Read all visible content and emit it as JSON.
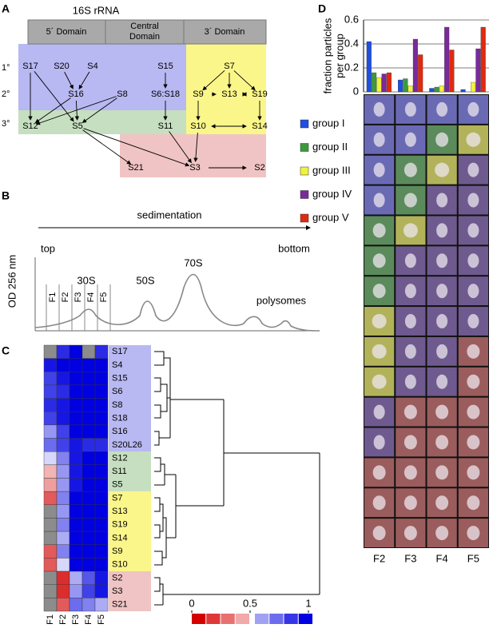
{
  "panel_labels": [
    "A",
    "B",
    "C",
    "D"
  ],
  "panel_a": {
    "title": "16S rRNA",
    "domains": [
      [
        "5´ Domain"
      ],
      [
        "Central",
        "Domain"
      ],
      [
        "3´ Domain"
      ]
    ],
    "levels": [
      "1°",
      "2°",
      "3°"
    ],
    "nodes": [
      "S17",
      "S20",
      "S4",
      "S15",
      "S7",
      "S16",
      "S8",
      "S6:S18",
      "S9",
      "S13",
      "S19",
      "S12",
      "S5",
      "S11",
      "S10",
      "S14",
      "S21",
      "S3",
      "S2"
    ]
  },
  "panel_b": {
    "direction_label": "sedimentation",
    "start": "top",
    "end": "bottom",
    "y_label": "OD 256 nm",
    "peaks": [
      "30S",
      "50S",
      "70S",
      "polysomes"
    ],
    "fractions": [
      "F1",
      "F2",
      "F3",
      "F4",
      "F5"
    ]
  },
  "panel_c": {
    "columns": [
      "F1",
      "F2",
      "F3",
      "F4",
      "F5"
    ],
    "rows": [
      "S17",
      "S4",
      "S15",
      "S6",
      "S8",
      "S18",
      "S16",
      "S20L26",
      "S12",
      "S11",
      "S5",
      "S7",
      "S13",
      "S19",
      "S14",
      "S9",
      "S10",
      "S2",
      "S3",
      "S21"
    ],
    "values": [
      [
        null,
        0.9,
        1,
        null,
        0.9
      ],
      [
        0.95,
        1,
        1,
        1,
        1
      ],
      [
        0.85,
        0.95,
        1,
        1,
        1
      ],
      [
        0.85,
        0.9,
        1,
        1,
        1
      ],
      [
        0.9,
        0.95,
        1,
        1,
        1
      ],
      [
        0.85,
        0.95,
        1,
        1,
        1
      ],
      [
        0.65,
        0.85,
        1,
        1,
        1
      ],
      [
        0.75,
        0.85,
        0.95,
        0.9,
        0.9
      ],
      [
        0.5,
        0.7,
        0.95,
        1,
        1
      ],
      [
        0.4,
        0.65,
        0.95,
        1,
        1
      ],
      [
        0.35,
        0.65,
        0.95,
        1,
        1
      ],
      [
        0.2,
        0.7,
        1,
        1,
        1
      ],
      [
        null,
        0.65,
        1,
        1,
        1
      ],
      [
        null,
        0.7,
        1,
        1,
        1
      ],
      [
        null,
        0.6,
        1,
        1,
        1
      ],
      [
        0.2,
        0.7,
        1,
        1,
        1
      ],
      [
        0.2,
        0.5,
        1,
        1,
        1
      ],
      [
        null,
        0.1,
        0.6,
        0.8,
        0.95
      ],
      [
        null,
        0.1,
        0.65,
        0.85,
        0.95
      ],
      [
        null,
        0.2,
        0.75,
        0.7,
        0.6
      ]
    ],
    "colorbar_ticks": [
      0,
      0.5,
      1
    ]
  },
  "chart_data": {
    "type": "bar",
    "y_label": [
      "fraction particles",
      "per group"
    ],
    "categories": [
      "F2",
      "F3",
      "F4",
      "F5"
    ],
    "series": [
      {
        "name": "group I",
        "color": "#1f4fe0",
        "values": [
          0.42,
          0.1,
          0.03,
          0.02
        ]
      },
      {
        "name": "group II",
        "color": "#3c9a3c",
        "values": [
          0.16,
          0.11,
          0.04,
          0
        ]
      },
      {
        "name": "group III",
        "color": "#f2f23c",
        "values": [
          0.12,
          0.05,
          0.05,
          0.08
        ]
      },
      {
        "name": "group IV",
        "color": "#7a2a9a",
        "values": [
          0.15,
          0.44,
          0.54,
          0.36
        ]
      },
      {
        "name": "group V",
        "color": "#e02a10",
        "values": [
          0.16,
          0.31,
          0.35,
          0.54
        ]
      }
    ],
    "ylim": [
      0,
      0.6
    ],
    "yticks": [
      0,
      0.2,
      0.4,
      0.6
    ],
    "grid": true
  }
}
